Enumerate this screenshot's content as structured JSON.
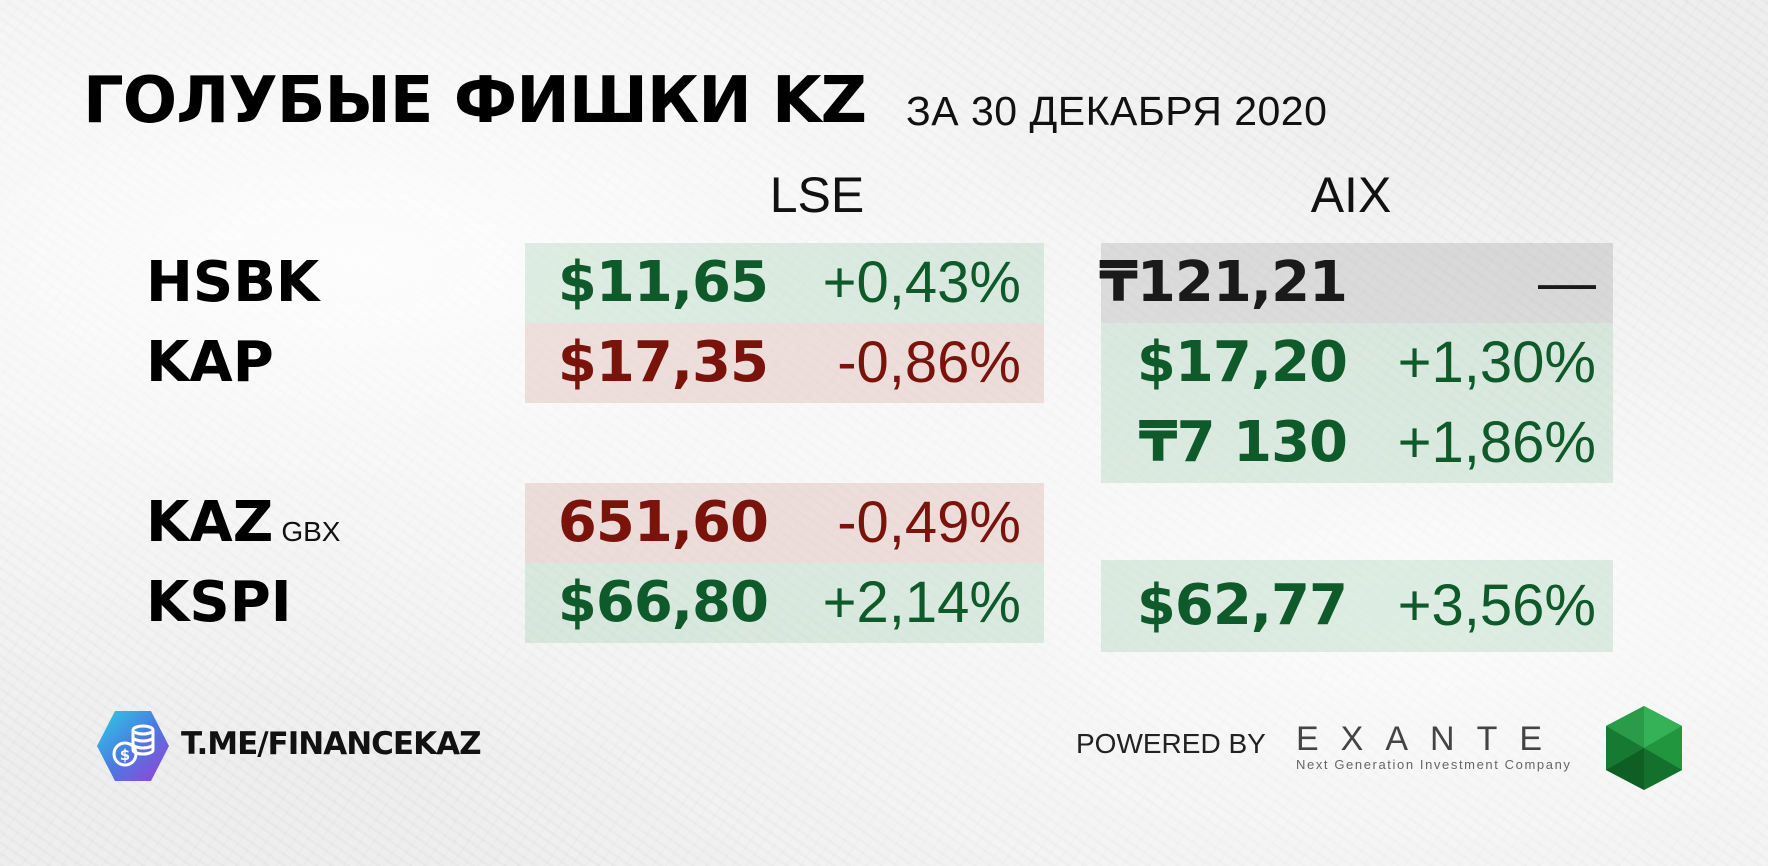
{
  "header": {
    "title": "ГОЛУБЫЕ ФИШКИ KZ",
    "subtitle": "ЗА 30 ДЕКАБРЯ 2020"
  },
  "columns": {
    "lse": "LSE",
    "aix": "AIX"
  },
  "rows": [
    {
      "ticker": "HSBK",
      "unit": "",
      "lse": {
        "price": "$11,65",
        "change": "+0,43%",
        "trend": "up"
      },
      "aix": {
        "price": "₸121,21",
        "change": "—",
        "trend": "flat"
      }
    },
    {
      "ticker": "KAP",
      "unit": "",
      "lse": {
        "price": "$17,35",
        "change": "-0,86%",
        "trend": "down"
      },
      "aix": {
        "price": "$17,20",
        "change": "+1,30%",
        "trend": "up"
      }
    },
    {
      "ticker": "",
      "unit": "",
      "lse": null,
      "aix": {
        "price": "₸7 130",
        "change": "+1,86%",
        "trend": "up"
      }
    },
    {
      "ticker": "KAZ",
      "unit": "GBX",
      "lse": {
        "price": "651,60",
        "change": "-0,49%",
        "trend": "down"
      },
      "aix": null
    },
    {
      "ticker": "KSPI",
      "unit": "",
      "lse": {
        "price": "$66,80",
        "change": "+2,14%",
        "trend": "up"
      },
      "aix": {
        "price": "$62,77",
        "change": "+3,56%",
        "trend": "up"
      }
    }
  ],
  "footer": {
    "channel_link": "T.ME/FINANCEKAZ",
    "powered_by": "POWERED BY",
    "partner_name": "EXANTE",
    "partner_tagline": "Next Generation Investment Company"
  },
  "colors": {
    "up": "#0f5a2a",
    "down": "#7a130c",
    "flat": "#1a1a1a"
  },
  "icons": {
    "channel_logo": "coins-dollar-hexagon-icon",
    "partner_logo": "green-crystal-icon"
  }
}
